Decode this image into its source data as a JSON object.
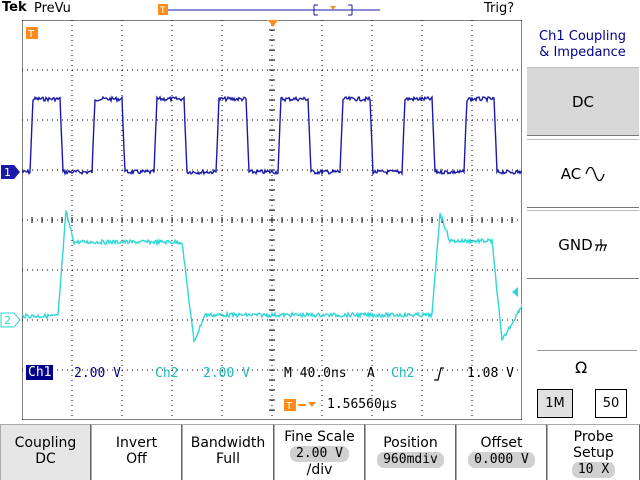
{
  "top": {
    "brand": "Tek",
    "mode": "PreVu",
    "trigger_status": "Trig?"
  },
  "scope": {
    "ch1_marker": "1",
    "ch2_marker": "2",
    "trigger_marker": "T",
    "ch1_color": "#1a1aa8",
    "ch2_color": "#2fd6d6"
  },
  "side_menu": {
    "title_line1": "Ch1 Coupling",
    "title_line2": "& Impedance",
    "dc": "DC",
    "ac": "AC",
    "gnd": "GND",
    "ohm": "Ω",
    "imp_1m": "1M",
    "imp_50": "50"
  },
  "status": {
    "ch1_label": "Ch1",
    "ch1_scale": "2.00 V",
    "ch2_label": "Ch2",
    "ch2_scale": "2.00 V",
    "timebase": "M 40.0ns",
    "trig_mode": "A",
    "trig_src": "Ch2",
    "trig_level": "1.08 V",
    "trig_delay": "1.56560µs"
  },
  "bottom_menu": [
    {
      "line1": "Coupling",
      "line2": "DC"
    },
    {
      "line1": "Invert",
      "line2": "Off"
    },
    {
      "line1": "Bandwidth",
      "line2": "Full"
    },
    {
      "line1": "Fine Scale",
      "line2": "2.00 V",
      "line3": "/div"
    },
    {
      "line1": "Position",
      "line2": "960mdiv"
    },
    {
      "line1": "Offset",
      "line2": "0.000 V"
    },
    {
      "line1": "Probe",
      "line2": "Setup",
      "line3": "10 X"
    }
  ]
}
